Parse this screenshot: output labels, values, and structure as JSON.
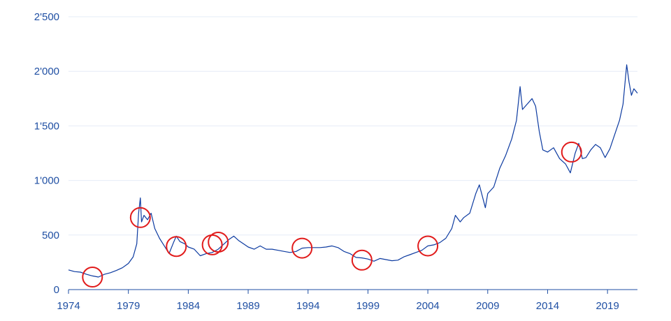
{
  "chart_data": {
    "type": "line",
    "title": "",
    "xlabel": "",
    "ylabel": "",
    "xlim": [
      1974,
      2021.5
    ],
    "ylim": [
      0,
      2500
    ],
    "grid": true,
    "legend": "none",
    "x_ticks": [
      {
        "value": 1974,
        "label": "1974"
      },
      {
        "value": 1979,
        "label": "1979"
      },
      {
        "value": 1984,
        "label": "1984"
      },
      {
        "value": 1989,
        "label": "1989"
      },
      {
        "value": 1994,
        "label": "1994"
      },
      {
        "value": 1999,
        "label": "1999"
      },
      {
        "value": 2004,
        "label": "2004"
      },
      {
        "value": 2009,
        "label": "2009"
      },
      {
        "value": 2014,
        "label": "2014"
      },
      {
        "value": 2019,
        "label": "2019"
      }
    ],
    "y_ticks": [
      {
        "value": 0,
        "label": "0"
      },
      {
        "value": 500,
        "label": "500"
      },
      {
        "value": 1000,
        "label": "1'000"
      },
      {
        "value": 1500,
        "label": "1'500"
      },
      {
        "value": 2000,
        "label": "2'000"
      },
      {
        "value": 2500,
        "label": "2'500"
      }
    ],
    "series": [
      {
        "color": "#0c3aa0",
        "points": [
          [
            1974.0,
            180
          ],
          [
            1974.5,
            165
          ],
          [
            1975.0,
            160
          ],
          [
            1975.5,
            140
          ],
          [
            1976.0,
            125
          ],
          [
            1976.5,
            115
          ],
          [
            1977.0,
            140
          ],
          [
            1977.5,
            155
          ],
          [
            1978.0,
            175
          ],
          [
            1978.5,
            200
          ],
          [
            1979.0,
            240
          ],
          [
            1979.4,
            300
          ],
          [
            1979.7,
            420
          ],
          [
            1979.85,
            700
          ],
          [
            1980.0,
            840
          ],
          [
            1980.1,
            620
          ],
          [
            1980.3,
            680
          ],
          [
            1980.6,
            640
          ],
          [
            1980.9,
            700
          ],
          [
            1981.2,
            560
          ],
          [
            1981.6,
            470
          ],
          [
            1982.0,
            400
          ],
          [
            1982.4,
            330
          ],
          [
            1982.8,
            440
          ],
          [
            1983.0,
            490
          ],
          [
            1983.3,
            440
          ],
          [
            1983.7,
            420
          ],
          [
            1984.0,
            390
          ],
          [
            1984.5,
            370
          ],
          [
            1985.0,
            310
          ],
          [
            1985.5,
            330
          ],
          [
            1986.0,
            340
          ],
          [
            1986.5,
            370
          ],
          [
            1987.0,
            420
          ],
          [
            1987.4,
            460
          ],
          [
            1987.8,
            490
          ],
          [
            1988.2,
            450
          ],
          [
            1988.6,
            420
          ],
          [
            1989.0,
            390
          ],
          [
            1989.5,
            370
          ],
          [
            1990.0,
            400
          ],
          [
            1990.5,
            370
          ],
          [
            1991.0,
            370
          ],
          [
            1991.5,
            360
          ],
          [
            1992.0,
            350
          ],
          [
            1992.5,
            340
          ],
          [
            1993.0,
            350
          ],
          [
            1993.5,
            380
          ],
          [
            1994.0,
            385
          ],
          [
            1994.5,
            385
          ],
          [
            1995.0,
            385
          ],
          [
            1995.5,
            390
          ],
          [
            1996.0,
            400
          ],
          [
            1996.5,
            385
          ],
          [
            1997.0,
            350
          ],
          [
            1997.5,
            330
          ],
          [
            1998.0,
            295
          ],
          [
            1998.5,
            290
          ],
          [
            1999.0,
            280
          ],
          [
            1999.5,
            260
          ],
          [
            2000.0,
            285
          ],
          [
            2000.5,
            275
          ],
          [
            2001.0,
            265
          ],
          [
            2001.5,
            270
          ],
          [
            2002.0,
            300
          ],
          [
            2002.5,
            320
          ],
          [
            2003.0,
            340
          ],
          [
            2003.5,
            360
          ],
          [
            2004.0,
            400
          ],
          [
            2004.5,
            410
          ],
          [
            2005.0,
            430
          ],
          [
            2005.5,
            470
          ],
          [
            2006.0,
            560
          ],
          [
            2006.3,
            680
          ],
          [
            2006.7,
            620
          ],
          [
            2007.0,
            660
          ],
          [
            2007.5,
            700
          ],
          [
            2008.0,
            880
          ],
          [
            2008.3,
            960
          ],
          [
            2008.8,
            750
          ],
          [
            2009.0,
            880
          ],
          [
            2009.5,
            940
          ],
          [
            2010.0,
            1110
          ],
          [
            2010.5,
            1230
          ],
          [
            2011.0,
            1380
          ],
          [
            2011.4,
            1550
          ],
          [
            2011.7,
            1860
          ],
          [
            2011.9,
            1650
          ],
          [
            2012.3,
            1700
          ],
          [
            2012.7,
            1750
          ],
          [
            2013.0,
            1680
          ],
          [
            2013.3,
            1450
          ],
          [
            2013.6,
            1280
          ],
          [
            2014.0,
            1260
          ],
          [
            2014.5,
            1300
          ],
          [
            2015.0,
            1200
          ],
          [
            2015.5,
            1150
          ],
          [
            2015.9,
            1070
          ],
          [
            2016.3,
            1250
          ],
          [
            2016.6,
            1340
          ],
          [
            2016.9,
            1200
          ],
          [
            2017.2,
            1210
          ],
          [
            2017.6,
            1280
          ],
          [
            2018.0,
            1330
          ],
          [
            2018.4,
            1300
          ],
          [
            2018.8,
            1210
          ],
          [
            2019.2,
            1290
          ],
          [
            2019.6,
            1420
          ],
          [
            2020.0,
            1550
          ],
          [
            2020.3,
            1700
          ],
          [
            2020.6,
            2060
          ],
          [
            2020.8,
            1900
          ],
          [
            2021.0,
            1780
          ],
          [
            2021.2,
            1840
          ],
          [
            2021.5,
            1800
          ]
        ]
      }
    ],
    "annotations": [
      {
        "type": "circle",
        "x": 1976.0,
        "y": 115
      },
      {
        "type": "circle",
        "x": 1980.0,
        "y": 660
      },
      {
        "type": "circle",
        "x": 1983.0,
        "y": 395
      },
      {
        "type": "circle",
        "x": 1986.0,
        "y": 410
      },
      {
        "type": "circle",
        "x": 1986.5,
        "y": 435
      },
      {
        "type": "circle",
        "x": 1993.5,
        "y": 380
      },
      {
        "type": "circle",
        "x": 1998.5,
        "y": 270
      },
      {
        "type": "circle",
        "x": 2004.0,
        "y": 400
      },
      {
        "type": "circle",
        "x": 2016.0,
        "y": 1260
      }
    ]
  }
}
